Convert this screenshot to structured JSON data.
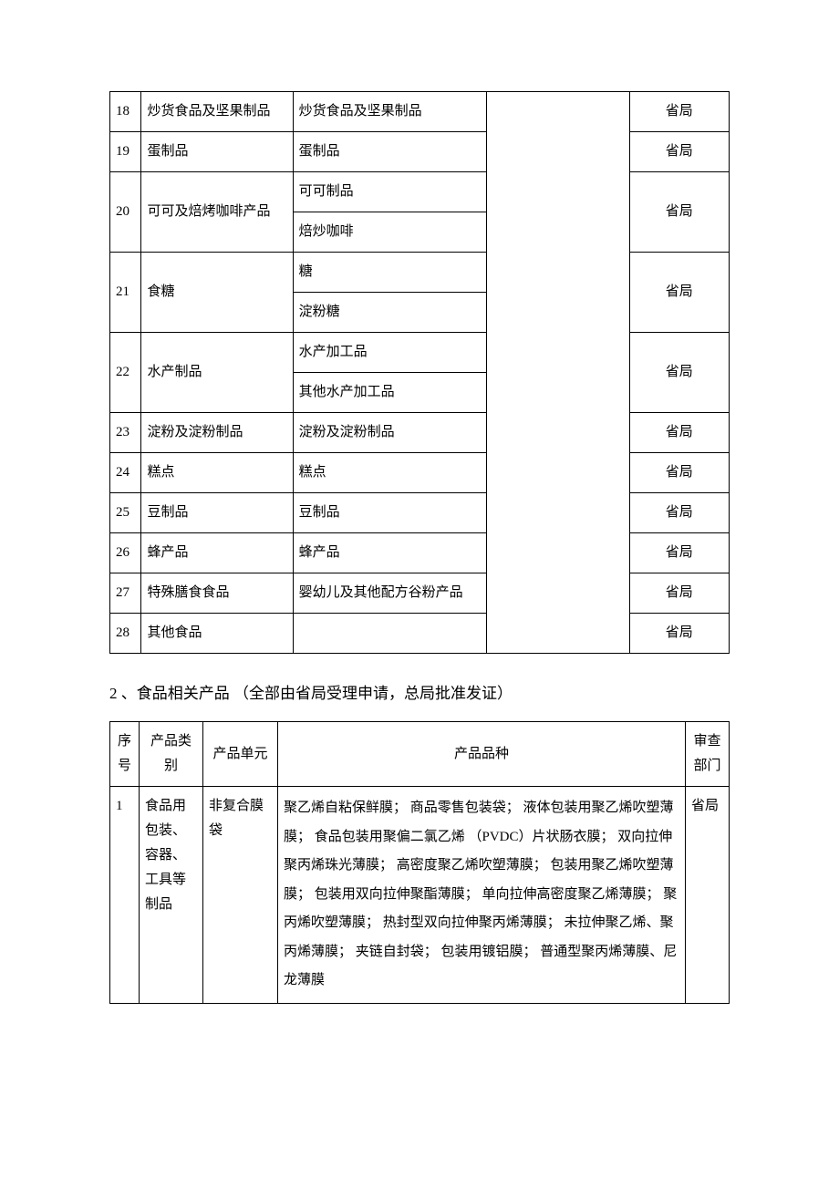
{
  "table1": {
    "rows": [
      {
        "num": "18",
        "category": "炒货食品及坚果制品",
        "products": [
          "炒货食品及坚果制品"
        ],
        "dept": "省局"
      },
      {
        "num": "19",
        "category": "蛋制品",
        "products": [
          "蛋制品"
        ],
        "dept": "省局"
      },
      {
        "num": "20",
        "category": "可可及焙烤咖啡产品",
        "products": [
          "可可制品",
          "焙炒咖啡"
        ],
        "dept": "省局"
      },
      {
        "num": "21",
        "category": "食糖",
        "products": [
          "糖",
          "淀粉糖"
        ],
        "dept": "省局"
      },
      {
        "num": "22",
        "category": "水产制品",
        "products": [
          "水产加工品",
          "其他水产加工品"
        ],
        "dept": "省局"
      },
      {
        "num": "23",
        "category": "淀粉及淀粉制品",
        "products": [
          "淀粉及淀粉制品"
        ],
        "dept": "省局"
      },
      {
        "num": "24",
        "category": "糕点",
        "products": [
          "糕点"
        ],
        "dept": "省局"
      },
      {
        "num": "25",
        "category": "豆制品",
        "products": [
          "豆制品"
        ],
        "dept": "省局"
      },
      {
        "num": "26",
        "category": "蜂产品",
        "products": [
          "蜂产品"
        ],
        "dept": "省局"
      },
      {
        "num": "27",
        "category": "特殊膳食食品",
        "products": [
          "婴幼儿及其他配方谷粉产品"
        ],
        "dept": "省局"
      },
      {
        "num": "28",
        "category": "其他食品",
        "products": [
          ""
        ],
        "dept": "省局"
      }
    ]
  },
  "section_title": "2 、食品相关产品 （全部由省局受理申请，总局批准发证）",
  "table2": {
    "headers": {
      "c1": "序号",
      "c2": "产品类别",
      "c3": "产品单元",
      "c4": "产品品种",
      "c5": "审查部门"
    },
    "row": {
      "num": "1",
      "category": "食品用包装、容器、工具等制品",
      "unit": "非复合膜袋",
      "variety": "聚乙烯自粘保鲜膜； 商品零售包装袋； 液体包装用聚乙烯吹塑薄膜； 食品包装用聚偏二氯乙烯 （PVDC）片状肠衣膜； 双向拉伸聚丙烯珠光薄膜； 高密度聚乙烯吹塑薄膜； 包装用聚乙烯吹塑薄膜； 包装用双向拉伸聚酯薄膜； 单向拉伸高密度聚乙烯薄膜； 聚丙烯吹塑薄膜； 热封型双向拉伸聚丙烯薄膜； 未拉伸聚乙烯、聚丙烯薄膜； 夹链自封袋； 包装用镀铝膜； 普通型聚丙烯薄膜、尼龙薄膜",
      "dept": "省局"
    }
  }
}
